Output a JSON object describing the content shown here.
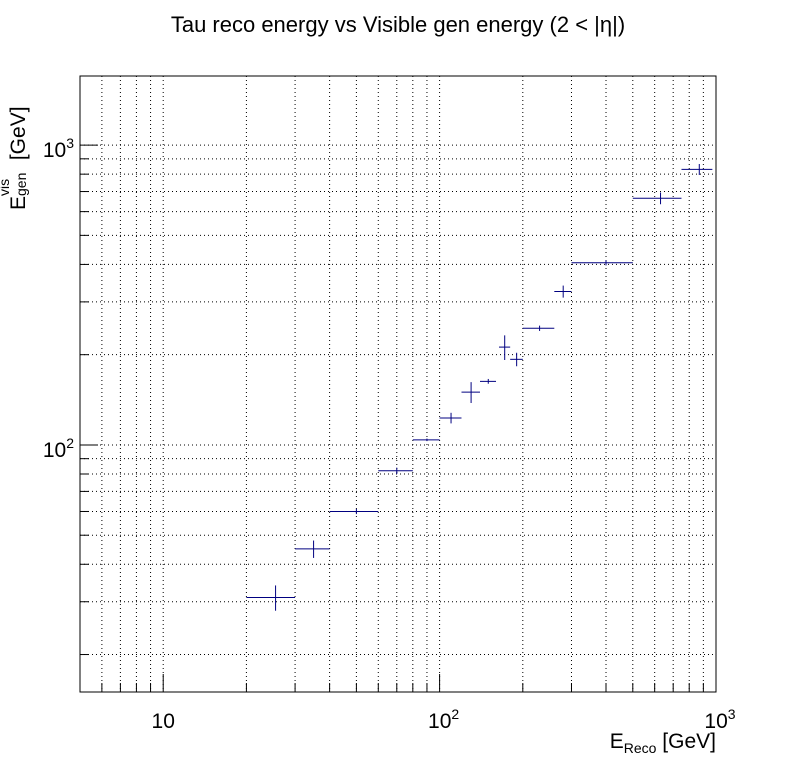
{
  "chart_data": {
    "type": "scatter",
    "title": "Tau reco energy vs Visible gen energy (2 < |η|)",
    "xlabel": "E_Reco [GeV]",
    "xlabel_main": "E",
    "xlabel_sub": "Reco",
    "xlabel_unit": " [GeV]",
    "ylabel": "E^vis_gen [GeV]",
    "ylabel_main": "E",
    "ylabel_sup": "vis",
    "ylabel_sub": "gen",
    "ylabel_unit": " [GeV]",
    "xscale": "log",
    "yscale": "log",
    "xlim": [
      5,
      1000
    ],
    "ylim": [
      15,
      1700
    ],
    "grid": true,
    "x_ticks": [
      "10",
      "10^2",
      "10^3"
    ],
    "y_ticks": [
      "10^2",
      "10^3"
    ],
    "marker_color": "#000080",
    "points": [
      {
        "x": 25.5,
        "xlo": 20,
        "xhi": 30,
        "y": 31,
        "yerr": 3
      },
      {
        "x": 35,
        "xlo": 30,
        "xhi": 40,
        "y": 45,
        "yerr": 3
      },
      {
        "x": 50,
        "xlo": 40,
        "xhi": 60,
        "y": 60,
        "yerr": 1.2
      },
      {
        "x": 70,
        "xlo": 60,
        "xhi": 80,
        "y": 82,
        "yerr": 2
      },
      {
        "x": 90,
        "xlo": 80,
        "xhi": 100,
        "y": 104,
        "yerr": 1
      },
      {
        "x": 110,
        "xlo": 100,
        "xhi": 120,
        "y": 123,
        "yerr": 5
      },
      {
        "x": 130,
        "xlo": 120,
        "xhi": 140,
        "y": 150,
        "yerr": 12
      },
      {
        "x": 150,
        "xlo": 140,
        "xhi": 160,
        "y": 163,
        "yerr": 3
      },
      {
        "x": 172,
        "xlo": 164,
        "xhi": 180,
        "y": 212,
        "yerr": 20
      },
      {
        "x": 190,
        "xlo": 180,
        "xhi": 200,
        "y": 193,
        "yerr": 10
      },
      {
        "x": 230,
        "xlo": 200,
        "xhi": 260,
        "y": 245,
        "yerr": 5
      },
      {
        "x": 280,
        "xlo": 260,
        "xhi": 300,
        "y": 325,
        "yerr": 15
      },
      {
        "x": 400,
        "xlo": 300,
        "xhi": 500,
        "y": 405,
        "yerr": 8
      },
      {
        "x": 630,
        "xlo": 500,
        "xhi": 750,
        "y": 665,
        "yerr": 30
      },
      {
        "x": 870,
        "xlo": 750,
        "xhi": 970,
        "y": 830,
        "yerr": 35
      }
    ]
  }
}
